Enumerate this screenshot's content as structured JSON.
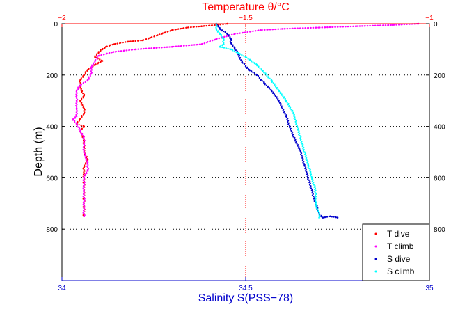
{
  "chart_data": {
    "type": "scatter",
    "title": "Temperature θ/°C",
    "xlabel_top": "Temperature θ/°C",
    "xlabel_bottom": "Salinity S(PSS−78)",
    "ylabel": "Depth (m)",
    "temperature_axis": {
      "range": [
        -2,
        -1
      ],
      "ticks": [
        "−2",
        "−1.5",
        "−1"
      ],
      "tick_values": [
        -2,
        -1.5,
        -1
      ]
    },
    "salinity_axis": {
      "range": [
        34,
        35
      ],
      "ticks": [
        "34",
        "34.5",
        "35"
      ],
      "tick_values": [
        34,
        34.5,
        35
      ]
    },
    "depth_axis": {
      "range": [
        0,
        1000
      ],
      "reversed": true,
      "ticks": [
        "0",
        "200",
        "400",
        "600",
        "800"
      ],
      "tick_values": [
        0,
        200,
        400,
        600,
        800
      ]
    },
    "grid": true,
    "legend_position": "bottom-right",
    "series": [
      {
        "name": "T dive",
        "axis": "temperature",
        "color": "#ff0000",
        "marker": "dot",
        "points": [
          [
            -1.55,
            0
          ],
          [
            -1.58,
            5
          ],
          [
            -1.62,
            10
          ],
          [
            -1.66,
            15
          ],
          [
            -1.7,
            25
          ],
          [
            -1.72,
            35
          ],
          [
            -1.74,
            45
          ],
          [
            -1.76,
            55
          ],
          [
            -1.78,
            65
          ],
          [
            -1.82,
            70
          ],
          [
            -1.86,
            80
          ],
          [
            -1.88,
            90
          ],
          [
            -1.89,
            100
          ],
          [
            -1.9,
            110
          ],
          [
            -1.91,
            130
          ],
          [
            -1.89,
            145
          ],
          [
            -1.91,
            160
          ],
          [
            -1.93,
            180
          ],
          [
            -1.94,
            200
          ],
          [
            -1.95,
            220
          ],
          [
            -1.95,
            250
          ],
          [
            -1.94,
            280
          ],
          [
            -1.95,
            300
          ],
          [
            -1.94,
            330
          ],
          [
            -1.94,
            350
          ],
          [
            -1.95,
            370
          ],
          [
            -1.96,
            390
          ],
          [
            -1.94,
            400
          ],
          [
            -1.95,
            420
          ],
          [
            -1.94,
            450
          ],
          [
            -1.94,
            480
          ],
          [
            -1.94,
            500
          ],
          [
            -1.93,
            530
          ],
          [
            -1.94,
            560
          ],
          [
            -1.94,
            600
          ],
          [
            -1.94,
            650
          ],
          [
            -1.94,
            700
          ],
          [
            -1.94,
            750
          ]
        ]
      },
      {
        "name": "T climb",
        "axis": "temperature",
        "color": "#ff00ff",
        "marker": "dot",
        "points": [
          [
            -1.03,
            0
          ],
          [
            -1.1,
            5
          ],
          [
            -1.2,
            10
          ],
          [
            -1.3,
            15
          ],
          [
            -1.4,
            20
          ],
          [
            -1.46,
            25
          ],
          [
            -1.53,
            40
          ],
          [
            -1.58,
            60
          ],
          [
            -1.62,
            80
          ],
          [
            -1.7,
            90
          ],
          [
            -1.8,
            100
          ],
          [
            -1.86,
            110
          ],
          [
            -1.9,
            125
          ],
          [
            -1.91,
            145
          ],
          [
            -1.92,
            170
          ],
          [
            -1.92,
            195
          ],
          [
            -1.93,
            220
          ],
          [
            -1.95,
            240
          ],
          [
            -1.96,
            260
          ],
          [
            -1.96,
            280
          ],
          [
            -1.96,
            300
          ],
          [
            -1.96,
            330
          ],
          [
            -1.96,
            360
          ],
          [
            -1.97,
            375
          ],
          [
            -1.96,
            390
          ],
          [
            -1.95,
            420
          ],
          [
            -1.94,
            440
          ],
          [
            -1.94,
            470
          ],
          [
            -1.94,
            500
          ],
          [
            -1.93,
            540
          ],
          [
            -1.93,
            570
          ],
          [
            -1.94,
            600
          ],
          [
            -1.94,
            650
          ],
          [
            -1.94,
            700
          ],
          [
            -1.94,
            750
          ]
        ]
      },
      {
        "name": "S dive",
        "axis": "salinity",
        "color": "#0000cc",
        "marker": "dot",
        "points": [
          [
            34.42,
            0
          ],
          [
            34.43,
            20
          ],
          [
            34.45,
            40
          ],
          [
            34.46,
            60
          ],
          [
            34.46,
            75
          ],
          [
            34.47,
            95
          ],
          [
            34.48,
            120
          ],
          [
            34.49,
            150
          ],
          [
            34.51,
            180
          ],
          [
            34.53,
            200
          ],
          [
            34.55,
            230
          ],
          [
            34.57,
            260
          ],
          [
            34.59,
            300
          ],
          [
            34.6,
            330
          ],
          [
            34.61,
            360
          ],
          [
            34.62,
            400
          ],
          [
            34.63,
            440
          ],
          [
            34.65,
            500
          ],
          [
            34.66,
            550
          ],
          [
            34.67,
            600
          ],
          [
            34.68,
            650
          ],
          [
            34.69,
            700
          ],
          [
            34.7,
            740
          ],
          [
            34.71,
            755
          ],
          [
            34.73,
            750
          ],
          [
            34.75,
            755
          ]
        ]
      },
      {
        "name": "S climb",
        "axis": "salinity",
        "color": "#00ffff",
        "marker": "dot",
        "points": [
          [
            34.42,
            0
          ],
          [
            34.42,
            20
          ],
          [
            34.43,
            40
          ],
          [
            34.44,
            60
          ],
          [
            34.44,
            80
          ],
          [
            34.43,
            90
          ],
          [
            34.46,
            100
          ],
          [
            34.5,
            130
          ],
          [
            34.53,
            160
          ],
          [
            34.55,
            190
          ],
          [
            34.57,
            220
          ],
          [
            34.59,
            260
          ],
          [
            34.61,
            300
          ],
          [
            34.63,
            350
          ],
          [
            34.64,
            400
          ],
          [
            34.65,
            450
          ],
          [
            34.66,
            500
          ],
          [
            34.67,
            550
          ],
          [
            34.68,
            600
          ],
          [
            34.69,
            650
          ],
          [
            34.69,
            700
          ],
          [
            34.7,
            740
          ],
          [
            34.7,
            755
          ]
        ]
      }
    ]
  }
}
